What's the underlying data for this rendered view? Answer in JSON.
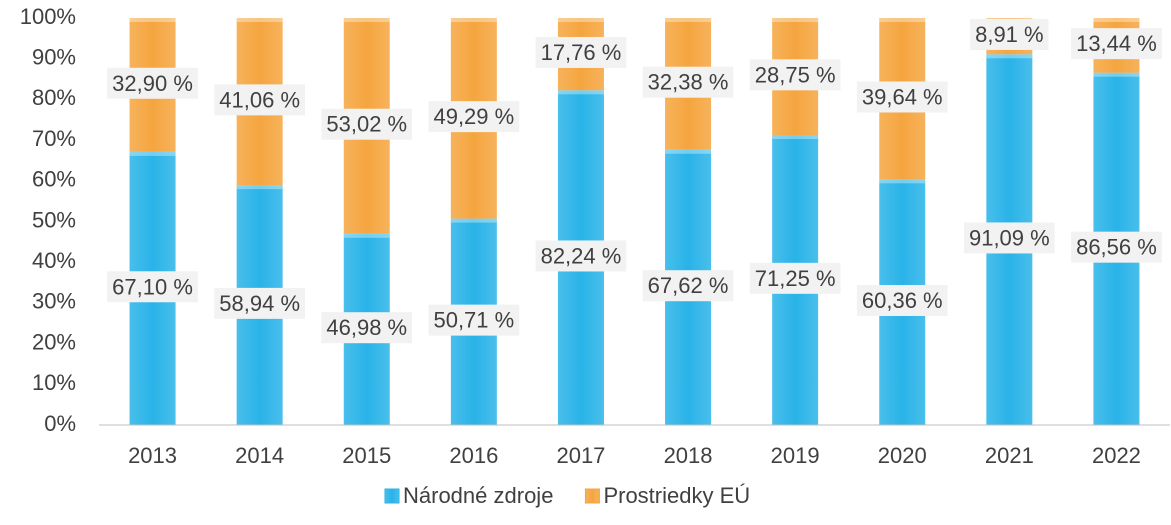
{
  "chart_data": {
    "type": "stacked_bar",
    "categories": [
      "2013",
      "2014",
      "2015",
      "2016",
      "2017",
      "2018",
      "2019",
      "2020",
      "2021",
      "2022"
    ],
    "series": [
      {
        "name": "Národné zdroje",
        "color": "#29b3e8",
        "values": [
          67.1,
          58.94,
          46.98,
          50.71,
          82.24,
          67.62,
          71.25,
          60.36,
          91.09,
          86.56
        ],
        "value_labels": [
          "67,10 %",
          "58,94 %",
          "46,98 %",
          "50,71 %",
          "82,24 %",
          "67,62 %",
          "71,25 %",
          "60,36 %",
          "91,09 %",
          "86,56 %"
        ]
      },
      {
        "name": "Prostriedky EÚ",
        "color": "#f5a53f",
        "values": [
          32.9,
          41.06,
          53.02,
          49.29,
          17.76,
          32.38,
          28.75,
          39.64,
          8.91,
          13.44
        ],
        "value_labels": [
          "32,90 %",
          "41,06 %",
          "53,02 %",
          "49,29 %",
          "17,76 %",
          "32,38 %",
          "28,75 %",
          "39,64 %",
          "8,91 %",
          "13,44 %"
        ]
      }
    ],
    "ylim": [
      0,
      100
    ],
    "yticks": [
      {
        "value": 0,
        "label": "0%"
      },
      {
        "value": 10,
        "label": "10%"
      },
      {
        "value": 20,
        "label": "20%"
      },
      {
        "value": 30,
        "label": "30%"
      },
      {
        "value": 40,
        "label": "40%"
      },
      {
        "value": 50,
        "label": "50%"
      },
      {
        "value": 60,
        "label": "60%"
      },
      {
        "value": 70,
        "label": "70%"
      },
      {
        "value": 80,
        "label": "80%"
      },
      {
        "value": 90,
        "label": "90%"
      },
      {
        "value": 100,
        "label": "100%"
      }
    ],
    "grid": false,
    "legend": "bottom"
  }
}
